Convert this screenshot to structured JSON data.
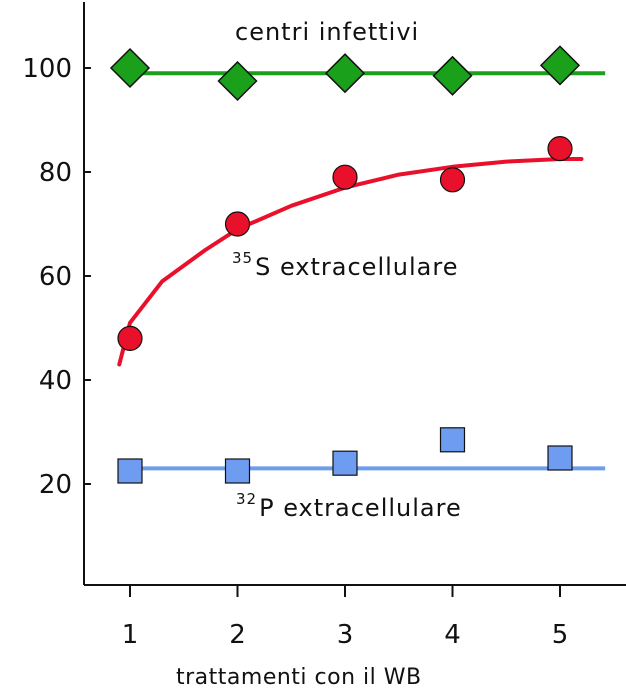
{
  "chart_data": {
    "type": "scatter",
    "title": "",
    "xlabel": "trattamenti con il WB",
    "ylabel": "",
    "x_ticks": [
      "1",
      "2",
      "3",
      "4",
      "5"
    ],
    "y_ticks": [
      "20",
      "40",
      "60",
      "80",
      "100"
    ],
    "xlim": [
      0.55,
      5.6
    ],
    "ylim": [
      0,
      110
    ],
    "grid": false,
    "legend": "none",
    "series": [
      {
        "color": "#1aa01a",
        "marker": "diamond",
        "x": [
          1,
          2,
          3,
          4,
          5
        ],
        "y": [
          100,
          97.5,
          99,
          98.5,
          100.5
        ],
        "trend": {
          "kind": "flat",
          "value": 99
        }
      },
      {
        "color": "#e8102a",
        "marker": "circle",
        "x": [
          1,
          2,
          3,
          4,
          5
        ],
        "y": [
          48,
          70,
          79,
          78.5,
          84.5
        ],
        "trend": {
          "kind": "saturating",
          "points": [
            [
              0.9,
              43
            ],
            [
              1.0,
              51
            ],
            [
              1.3,
              59
            ],
            [
              1.7,
              65
            ],
            [
              2.0,
              69
            ],
            [
              2.5,
              73.5
            ],
            [
              3.0,
              77
            ],
            [
              3.5,
              79.5
            ],
            [
              4.0,
              81
            ],
            [
              4.5,
              82
            ],
            [
              5.0,
              82.5
            ],
            [
              5.2,
              82.5
            ]
          ]
        }
      },
      {
        "color": "#6e9cf0",
        "marker": "square",
        "x": [
          1,
          2,
          3,
          4,
          5
        ],
        "y": [
          22.5,
          22.5,
          24,
          28.5,
          25
        ],
        "trend": {
          "kind": "flat",
          "value": 23
        }
      }
    ],
    "annotations": {
      "green": "centri infettivi",
      "red_sup": "35",
      "red_rest": "S extracellulare",
      "blue_sup": "32",
      "blue_rest": "P extracellulare"
    }
  }
}
